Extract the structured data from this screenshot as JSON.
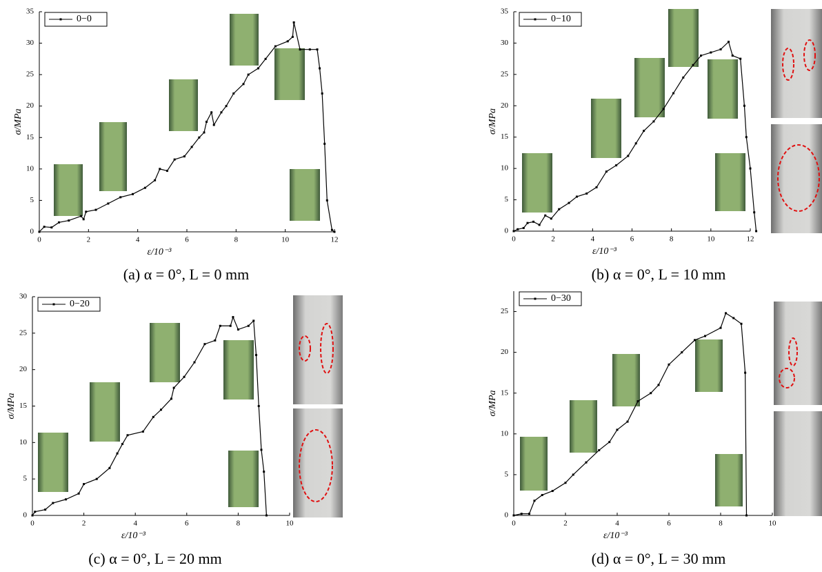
{
  "chart_data": [
    {
      "type": "line",
      "caption": "(a) α = 0°, L = 0 mm",
      "xlabel": "ε/10⁻³",
      "ylabel": "σ/MPa",
      "xlim": [
        0,
        12
      ],
      "ylim": [
        0,
        35
      ],
      "xticks": [
        0,
        2,
        4,
        6,
        8,
        10,
        12
      ],
      "yticks": [
        0,
        5,
        10,
        15,
        20,
        25,
        30,
        35
      ],
      "x": [
        0,
        0.2,
        0.5,
        0.8,
        1.2,
        1.7,
        1.8,
        1.9,
        2.3,
        2.8,
        3.3,
        3.8,
        4.3,
        4.7,
        4.9,
        5.2,
        5.5,
        5.9,
        6.2,
        6.5,
        6.7,
        6.8,
        7.0,
        7.1,
        7.4,
        7.6,
        7.9,
        8.3,
        8.5,
        8.9,
        9.2,
        9.6,
        10.1,
        10.3,
        10.35,
        10.6,
        11.0,
        11.3,
        11.4,
        11.5,
        11.6,
        11.7,
        11.9,
        12
      ],
      "series": [
        {
          "name": "0−0",
          "color": "#000000",
          "values": [
            0,
            0.8,
            0.7,
            1.5,
            1.8,
            2.5,
            2,
            3.2,
            3.5,
            4.5,
            5.5,
            6,
            7,
            8.2,
            10,
            9.7,
            11.5,
            12,
            13.5,
            15,
            15.8,
            17.5,
            19,
            17,
            19,
            20,
            22,
            23.5,
            25,
            26,
            27.5,
            29.5,
            30.3,
            31,
            33.3,
            29,
            29,
            29,
            26,
            22,
            14,
            5,
            0.3,
            0
          ]
        }
      ]
    },
    {
      "type": "line",
      "caption": "(b) α = 0°, L = 10 mm",
      "xlabel": "ε/10⁻³",
      "ylabel": "σ/MPa",
      "xlim": [
        0,
        12
      ],
      "ylim": [
        0,
        35
      ],
      "xticks": [
        0,
        2,
        4,
        6,
        8,
        10,
        12
      ],
      "yticks": [
        0,
        5,
        10,
        15,
        20,
        25,
        30,
        35
      ],
      "x": [
        0,
        0.2,
        0.5,
        0.7,
        1.0,
        1.3,
        1.6,
        1.9,
        2.3,
        2.8,
        3.2,
        3.7,
        4.2,
        4.7,
        5.2,
        5.8,
        6.2,
        6.6,
        7.1,
        7.6,
        8.1,
        8.6,
        9.1,
        9.5,
        10.0,
        10.5,
        10.9,
        11.1,
        11.5,
        11.7,
        11.8,
        12.0,
        12.2,
        12.3
      ],
      "series": [
        {
          "name": "0−10",
          "color": "#000000",
          "values": [
            0,
            0.3,
            0.5,
            1.3,
            1.5,
            1,
            2.5,
            2,
            3.5,
            4.5,
            5.5,
            6,
            7,
            9.5,
            10.5,
            12,
            14,
            16,
            17.5,
            19.5,
            22,
            24.5,
            26.5,
            28,
            28.5,
            29,
            30.2,
            28,
            27.5,
            20,
            15,
            10,
            3,
            0
          ]
        }
      ]
    },
    {
      "type": "line",
      "caption": "(c) α = 0°, L = 20 mm",
      "xlabel": "ε/10⁻³",
      "ylabel": "σ/MPa",
      "xlim": [
        0,
        10
      ],
      "ylim": [
        0,
        30
      ],
      "xticks": [
        0,
        2,
        4,
        6,
        8,
        10
      ],
      "yticks": [
        0,
        5,
        10,
        15,
        20,
        25,
        30
      ],
      "x": [
        0,
        0.1,
        0.5,
        0.8,
        1.3,
        1.8,
        2.0,
        2.5,
        3.0,
        3.3,
        3.5,
        3.7,
        4.3,
        4.7,
        5.0,
        5.4,
        5.5,
        5.9,
        6.3,
        6.7,
        7.1,
        7.3,
        7.7,
        7.8,
        8.0,
        8.4,
        8.6,
        8.7,
        8.8,
        8.9,
        9.0,
        9.1
      ],
      "series": [
        {
          "name": "0−20",
          "color": "#000000",
          "values": [
            0,
            0.5,
            0.8,
            1.7,
            2.2,
            3,
            4.3,
            5,
            6.5,
            8.5,
            9.8,
            11,
            11.5,
            13.5,
            14.5,
            16,
            17.5,
            19,
            21,
            23.5,
            24,
            26,
            26,
            27.2,
            25.5,
            26,
            26.7,
            22,
            15,
            9,
            6,
            0
          ]
        }
      ]
    },
    {
      "type": "line",
      "caption": "(d) α = 0°, L = 30 mm",
      "xlabel": "ε/10⁻³",
      "ylabel": "σ/MPa",
      "xlim": [
        0,
        10
      ],
      "ylim": [
        0,
        27.5
      ],
      "xticks": [
        0,
        2,
        4,
        6,
        8,
        10
      ],
      "yticks": [
        0,
        5,
        10,
        15,
        20,
        25
      ],
      "x": [
        0,
        0.3,
        0.6,
        0.8,
        1.1,
        1.5,
        2.0,
        2.3,
        2.8,
        3.3,
        3.7,
        4.0,
        4.4,
        4.8,
        5.3,
        5.6,
        6.0,
        6.5,
        7.0,
        7.4,
        8.0,
        8.2,
        8.5,
        8.8,
        8.95,
        9.0
      ],
      "series": [
        {
          "name": "0−30",
          "color": "#000000",
          "values": [
            0,
            0.2,
            0.2,
            1.8,
            2.5,
            3,
            4,
            5,
            6.5,
            8,
            9,
            10.5,
            11.5,
            14,
            15,
            16,
            18.5,
            20,
            21.5,
            22,
            23,
            24.8,
            24.2,
            23.5,
            17.5,
            0
          ]
        }
      ]
    }
  ]
}
